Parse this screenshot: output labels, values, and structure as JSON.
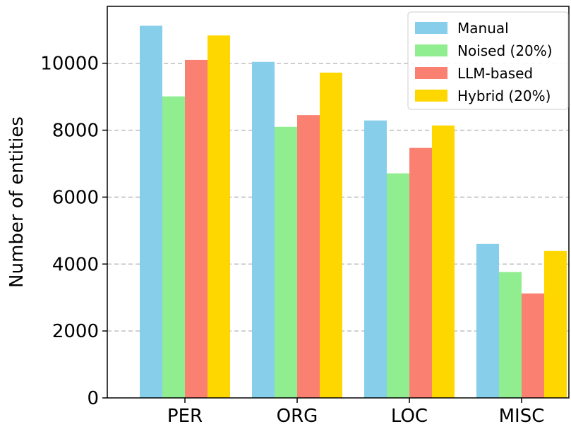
{
  "chart_data": {
    "type": "bar",
    "title": "",
    "xlabel": "",
    "ylabel": "Number of entities",
    "categories": [
      "PER",
      "ORG",
      "LOC",
      "MISC"
    ],
    "series": [
      {
        "name": "Manual",
        "color": "#87CEEB",
        "values": [
          11120,
          10040,
          8290,
          4600
        ]
      },
      {
        "name": "Noised (20%)",
        "color": "#90EE90",
        "values": [
          9010,
          8100,
          6710,
          3760
        ]
      },
      {
        "name": "LLM-based",
        "color": "#FA8072",
        "values": [
          10100,
          8450,
          7470,
          3120
        ]
      },
      {
        "name": "Hybrid (20%)",
        "color": "#FFD700",
        "values": [
          10830,
          9720,
          8140,
          4390
        ]
      }
    ],
    "ylim": [
      0,
      11700
    ],
    "yticks": [
      0,
      2000,
      4000,
      6000,
      8000,
      10000
    ],
    "grid": "y-dashed",
    "legend_position": "top-right"
  }
}
